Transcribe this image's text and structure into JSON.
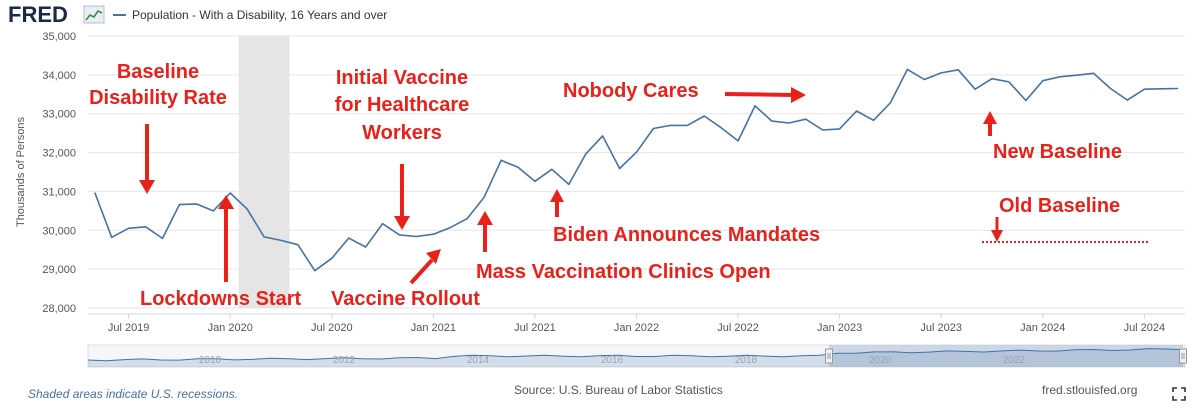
{
  "header": {
    "logo_text": "FRED",
    "logo_icon": "line-chart-icon",
    "legend_label": "Population - With a Disability, 16 Years and over",
    "series_color": "#4572a7"
  },
  "chart_data": {
    "type": "line",
    "title": "",
    "ylabel": "Thousands of Persons",
    "xlabel": "",
    "ylim": [
      28000,
      35000
    ],
    "yticks": [
      28000,
      29000,
      30000,
      31000,
      32000,
      33000,
      34000,
      35000
    ],
    "ytick_labels": [
      "28,000",
      "29,000",
      "30,000",
      "31,000",
      "32,000",
      "33,000",
      "34,000",
      "35,000"
    ],
    "xlim": [
      "2019-05",
      "2024-09"
    ],
    "xticks": [
      "2019-07",
      "2020-01",
      "2020-07",
      "2021-01",
      "2021-07",
      "2022-01",
      "2022-07",
      "2023-01",
      "2023-07",
      "2024-01",
      "2024-07"
    ],
    "xtick_labels": [
      "Jul 2019",
      "Jan 2020",
      "Jul 2020",
      "Jan 2021",
      "Jul 2021",
      "Jan 2022",
      "Jul 2022",
      "Jan 2023",
      "Jul 2023",
      "Jan 2024",
      "Jul 2024"
    ],
    "recession": [
      "2020-02",
      "2020-04"
    ],
    "grid": true,
    "series": [
      {
        "name": "Population - With a Disability, 16 Years and over",
        "x": [
          "2019-05",
          "2019-06",
          "2019-07",
          "2019-08",
          "2019-09",
          "2019-10",
          "2019-11",
          "2019-12",
          "2020-01",
          "2020-02",
          "2020-03",
          "2020-04",
          "2020-05",
          "2020-06",
          "2020-07",
          "2020-08",
          "2020-09",
          "2020-10",
          "2020-11",
          "2020-12",
          "2021-01",
          "2021-02",
          "2021-03",
          "2021-04",
          "2021-05",
          "2021-06",
          "2021-07",
          "2021-08",
          "2021-09",
          "2021-10",
          "2021-11",
          "2021-12",
          "2022-01",
          "2022-02",
          "2022-03",
          "2022-04",
          "2022-05",
          "2022-06",
          "2022-07",
          "2022-08",
          "2022-09",
          "2022-10",
          "2022-11",
          "2022-12",
          "2023-01",
          "2023-02",
          "2023-03",
          "2023-04",
          "2023-05",
          "2023-06",
          "2023-07",
          "2023-08",
          "2023-09",
          "2023-10",
          "2023-11",
          "2023-12",
          "2024-01",
          "2024-02",
          "2024-03",
          "2024-04",
          "2024-05",
          "2024-06",
          "2024-07",
          "2024-08",
          "2024-09"
        ],
        "values": [
          30970,
          29820,
          30050,
          30090,
          29790,
          30660,
          30680,
          30500,
          30960,
          30550,
          29830,
          29740,
          29630,
          28960,
          29280,
          29800,
          29570,
          30170,
          29880,
          29840,
          29900,
          30070,
          30300,
          30850,
          31800,
          31620,
          31260,
          31570,
          31180,
          31960,
          32430,
          31590,
          32010,
          32620,
          32700,
          32700,
          32940,
          32640,
          32300,
          33200,
          32810,
          32760,
          32860,
          32580,
          32610,
          33070,
          32830,
          33280,
          34140,
          33880,
          34050,
          34130,
          33630,
          33900,
          33820,
          33340,
          33850,
          33950,
          33990,
          34040,
          33650,
          33350,
          33630,
          33640,
          33650
        ]
      }
    ],
    "annotations": [
      {
        "text": "Baseline",
        "color": "#e8211b"
      },
      {
        "text": "Disability Rate",
        "color": "#e8211b"
      },
      {
        "text": "Lockdowns Start",
        "color": "#e8211b"
      },
      {
        "text": "Initial Vaccine",
        "color": "#e8211b"
      },
      {
        "text": "for Healthcare",
        "color": "#e8211b"
      },
      {
        "text": "Workers",
        "color": "#e8211b"
      },
      {
        "text": "Vaccine Rollout",
        "color": "#e8211b"
      },
      {
        "text": "Mass Vaccination Clinics Open",
        "color": "#e8211b"
      },
      {
        "text": "Biden Announces Mandates",
        "color": "#e8211b"
      },
      {
        "text": "Nobody Cares",
        "color": "#e8211b"
      },
      {
        "text": "New Baseline",
        "color": "#e8211b"
      },
      {
        "text": "Old Baseline",
        "color": "#e8211b"
      }
    ],
    "navigator": {
      "labels": [
        "2010",
        "2012",
        "2014",
        "2016",
        "2018",
        "2020",
        "2022"
      ]
    }
  },
  "footer": {
    "recession_note": "Shaded areas indicate U.S. recessions.",
    "source": "Source: U.S. Bureau of Labor Statistics",
    "site": "fred.stlouisfed.org"
  }
}
